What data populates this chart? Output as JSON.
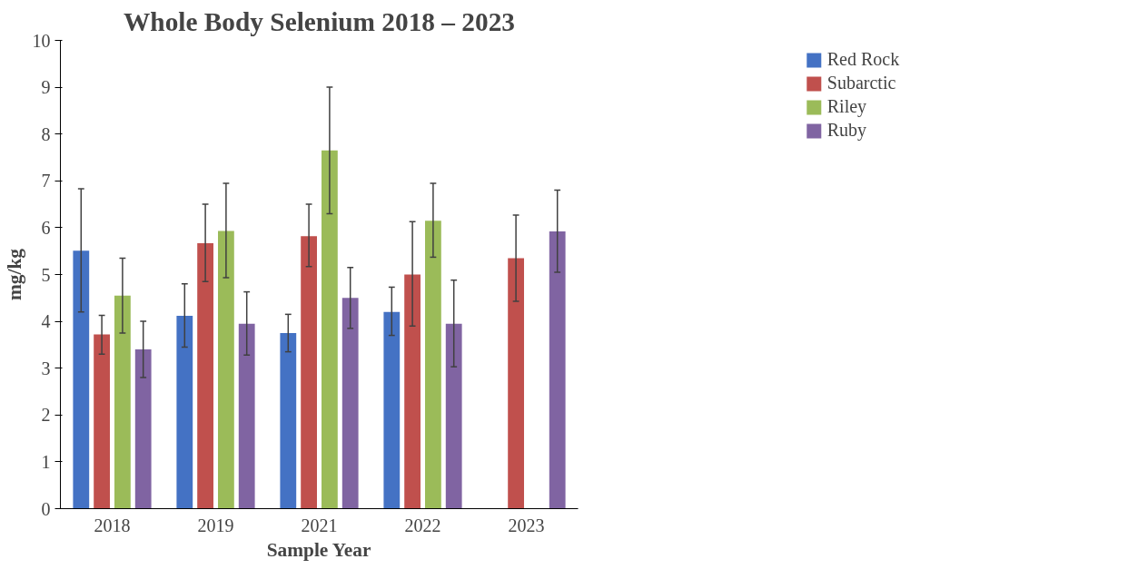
{
  "chart_data": {
    "type": "bar",
    "title": "Whole Body Selenium 2018 – 2023",
    "xlabel": "Sample Year",
    "ylabel": "mg/kg",
    "categories": [
      "2018",
      "2019",
      "2021",
      "2022",
      "2023"
    ],
    "ylim": [
      0,
      10
    ],
    "yticks": [
      0,
      1,
      2,
      3,
      4,
      5,
      6,
      7,
      8,
      9,
      10
    ],
    "grid": false,
    "legend": "top right",
    "series": [
      {
        "name": "Red Rock",
        "color": "#4472c4",
        "values": [
          5.51,
          4.12,
          3.75,
          4.2,
          null
        ],
        "errors": [
          [
            4.2,
            6.83
          ],
          [
            3.45,
            4.8
          ],
          [
            3.35,
            4.15
          ],
          [
            3.7,
            4.73
          ],
          null
        ]
      },
      {
        "name": "Subarctic",
        "color": "#c0504d",
        "values": [
          3.72,
          5.67,
          5.82,
          5.0,
          5.35
        ],
        "errors": [
          [
            3.3,
            4.13
          ],
          [
            4.85,
            6.5
          ],
          [
            5.17,
            6.5
          ],
          [
            3.9,
            6.13
          ],
          [
            4.43,
            6.27
          ]
        ]
      },
      {
        "name": "Riley",
        "color": "#9bbb59",
        "values": [
          4.55,
          5.93,
          7.65,
          6.15,
          null
        ],
        "errors": [
          [
            3.75,
            5.35
          ],
          [
            4.93,
            6.95
          ],
          [
            6.3,
            9.0
          ],
          [
            5.37,
            6.95
          ],
          null
        ]
      },
      {
        "name": "Ruby",
        "color": "#8064a2",
        "values": [
          3.4,
          3.95,
          4.5,
          3.95,
          5.92
        ],
        "errors": [
          [
            2.8,
            4.0
          ],
          [
            3.28,
            4.63
          ],
          [
            3.85,
            5.15
          ],
          [
            3.03,
            4.88
          ],
          [
            5.05,
            6.8
          ]
        ]
      }
    ]
  }
}
